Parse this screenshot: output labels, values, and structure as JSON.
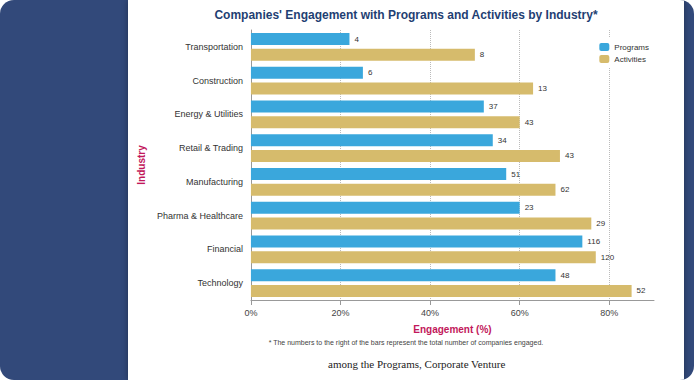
{
  "chart_data": {
    "type": "bar",
    "orientation": "horizontal",
    "title": "Companies' Engagement with Programs and Activities by Industry*",
    "x_label": "Engagement (%)",
    "y_label": "Industry",
    "categories": [
      "Transportation",
      "Construction",
      "Energy & Utilities",
      "Retail & Trading",
      "Manufacturing",
      "Pharma & Healthcare",
      "Financial",
      "Technology"
    ],
    "series": [
      {
        "name": "Programs",
        "color": "#3aa7dc",
        "values": [
          22,
          25,
          52,
          54,
          57,
          60,
          74,
          68
        ],
        "counts": [
          4,
          6,
          37,
          34,
          51,
          23,
          116,
          48
        ]
      },
      {
        "name": "Activities",
        "color": "#d6bb6c",
        "values": [
          50,
          63,
          60,
          69,
          68,
          76,
          77,
          85
        ],
        "counts": [
          8,
          13,
          43,
          43,
          62,
          29,
          120,
          52
        ]
      }
    ],
    "xlim": [
      0,
      90
    ],
    "xticks": [
      {
        "value": 0,
        "label": "0%"
      },
      {
        "value": 20,
        "label": "20%"
      },
      {
        "value": 40,
        "label": "40%"
      },
      {
        "value": 60,
        "label": "60%"
      },
      {
        "value": 80,
        "label": "80%"
      }
    ],
    "grid": true,
    "legend": "top-right",
    "footnote": "* The numbers to the right of the bars represent the total number of companies engaged.",
    "body_text": "among the Programs, Corporate Venture"
  }
}
